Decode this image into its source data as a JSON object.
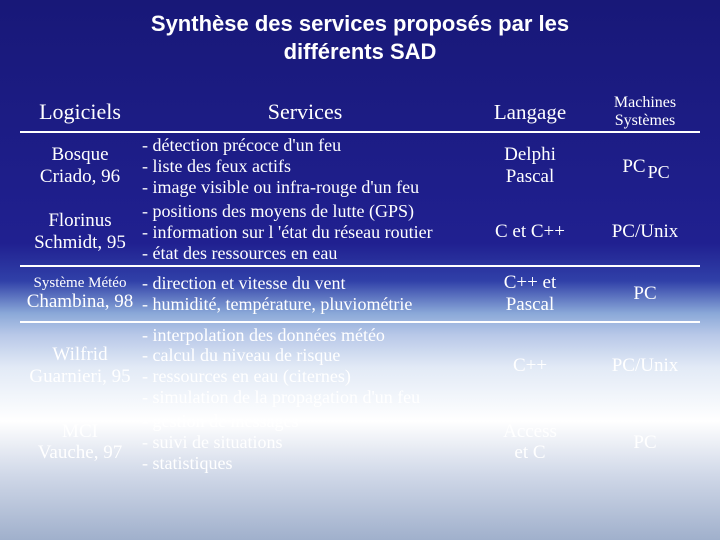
{
  "title_line1": "Synthèse des services proposés par les",
  "title_line2": "différents SAD",
  "headers": {
    "logiciels": "Logiciels",
    "services": "Services",
    "langage": "Langage",
    "machines_l1": "Machines",
    "machines_l2": "Systèmes"
  },
  "rows": [
    {
      "logiciel_l1": "Bosque",
      "logiciel_l2": "Criado, 96",
      "services": "- détection précoce d'un feu\n- liste des feux actifs\n- image visible ou infra-rouge d'un feu",
      "langage": "Delphi\nPascal",
      "machines_main": "PC",
      "machines_sub": "PC"
    },
    {
      "logiciel_l1": "Florinus",
      "logiciel_l2": "Schmidt, 95",
      "services": "- positions des moyens de lutte (GPS)\n- information sur l 'état du réseau routier\n- état des ressources en eau",
      "langage": "C et C++",
      "machines": "PC/Unix"
    },
    {
      "logiciel_sm": "Système Météo",
      "logiciel_l2": "Chambina, 98",
      "services": "- direction et vitesse du vent\n- humidité, température, pluviométrie",
      "langage": "C++ et\nPascal",
      "machines": "PC"
    },
    {
      "logiciel_l1": "Wilfrid",
      "logiciel_l2": "Guarnieri, 95",
      "services": "- interpolation des données météo\n- calcul du niveau de risque\n- ressources en eau (citernes)\n- simulation de la propagation d'un feu",
      "langage": "C++",
      "machines": "PC/Unix"
    },
    {
      "logiciel_l1": "MCI",
      "logiciel_l2": "Vauche, 97",
      "services": "- gestion de messages\n- suivi de situations\n- statistiques",
      "langage": "Access\net C",
      "machines": "PC"
    }
  ],
  "colors": {
    "bg_top": "#181878",
    "bg_bottom": "#a0b0cc",
    "text_light": "#ffffff",
    "text_dark": "#0a0a3a"
  }
}
